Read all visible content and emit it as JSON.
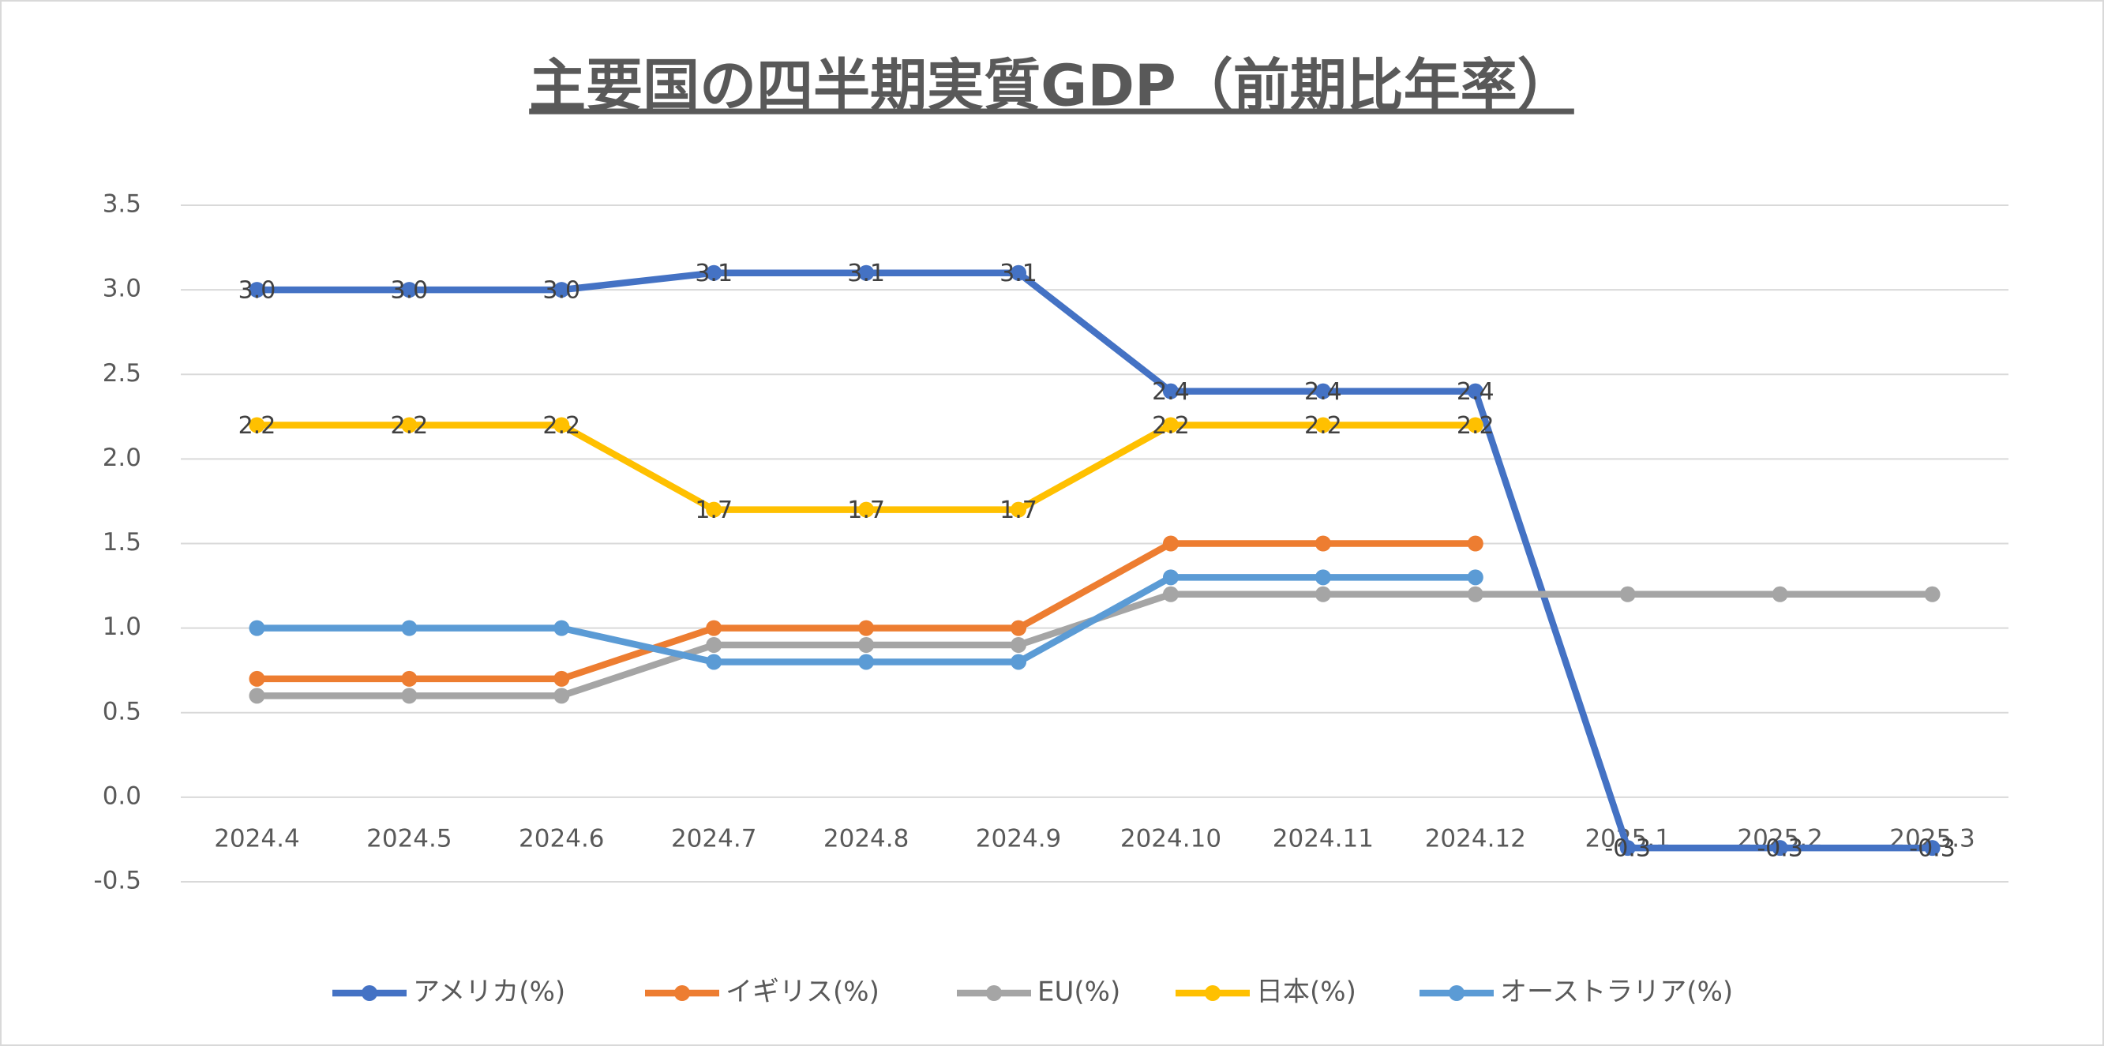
{
  "chart_data": {
    "type": "line",
    "title": "主要国の四半期実質GDP（前期比年率）",
    "categories": [
      "2024.4",
      "2024.5",
      "2024.6",
      "2024.7",
      "2024.8",
      "2024.9",
      "2024.10",
      "2024.11",
      "2024.12",
      "2025.1",
      "2025.2",
      "2025.3"
    ],
    "series": [
      {
        "name": "アメリカ(%)",
        "color": "#4472c4",
        "values": [
          3.0,
          3.0,
          3.0,
          3.1,
          3.1,
          3.1,
          2.4,
          2.4,
          2.4,
          -0.3,
          -0.3,
          -0.3
        ],
        "value_labels": [
          "3.0",
          "3.0",
          "3.0",
          "3.1",
          "3.1",
          "3.1",
          "2.4",
          "2.4",
          "2.4",
          "-0.3",
          "-0.3",
          "-0.3"
        ]
      },
      {
        "name": "イギリス(%)",
        "color": "#ed7d31",
        "values": [
          0.7,
          0.7,
          0.7,
          1.0,
          1.0,
          1.0,
          1.5,
          1.5,
          1.5,
          null,
          null,
          null
        ]
      },
      {
        "name": "EU(%)",
        "color": "#a5a5a5",
        "values": [
          0.6,
          0.6,
          0.6,
          0.9,
          0.9,
          0.9,
          1.2,
          1.2,
          1.2,
          1.2,
          1.2,
          1.2
        ]
      },
      {
        "name": "日本(%)",
        "color": "#ffc000",
        "values": [
          2.2,
          2.2,
          2.2,
          1.7,
          1.7,
          1.7,
          2.2,
          2.2,
          2.2,
          null,
          null,
          null
        ],
        "value_labels": [
          "2.2",
          "2.2",
          "2.2",
          "1.7",
          "1.7",
          "1.7",
          "2.2",
          "2.2",
          "2.2",
          null,
          null,
          null
        ]
      },
      {
        "name": "オーストラリア(%)",
        "color": "#5b9bd5",
        "values": [
          1.0,
          1.0,
          1.0,
          0.8,
          0.8,
          0.8,
          1.3,
          1.3,
          1.3,
          null,
          null,
          null
        ]
      }
    ],
    "ylim": [
      -0.5,
      3.5
    ],
    "yticks": [
      -0.5,
      {
        "value": 0,
        "label": "0.0"
      },
      0.5,
      {
        "value": 1,
        "label": "1.0"
      },
      1.5,
      {
        "value": 2,
        "label": "2.0"
      },
      2.5,
      {
        "value": 3,
        "label": "3.0"
      },
      3.5
    ],
    "grid": true,
    "legend": "bottom"
  }
}
